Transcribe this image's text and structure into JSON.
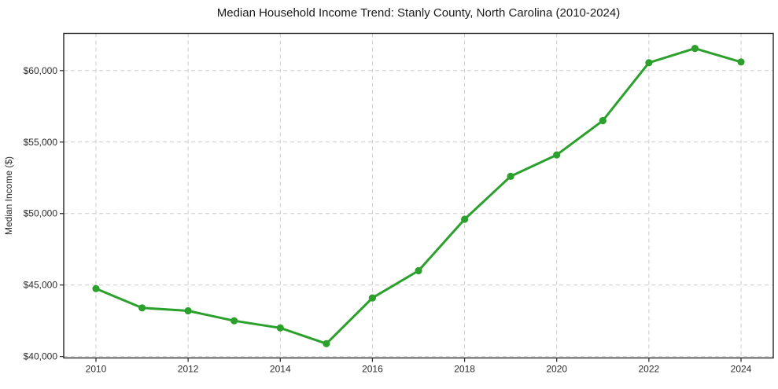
{
  "chart_data": {
    "type": "line",
    "title": "Median Household Income Trend: Stanly County, North Carolina (2010-2024)",
    "xlabel": "",
    "ylabel": "Median Income ($)",
    "x": [
      2010,
      2011,
      2012,
      2013,
      2014,
      2015,
      2016,
      2017,
      2018,
      2019,
      2020,
      2021,
      2022,
      2023,
      2024
    ],
    "values": [
      44750,
      43400,
      43200,
      42500,
      42000,
      40900,
      44100,
      46000,
      49600,
      52600,
      54100,
      56500,
      60550,
      61550,
      60600
    ],
    "x_ticks": [
      2010,
      2012,
      2014,
      2016,
      2018,
      2020,
      2022,
      2024
    ],
    "x_tick_labels": [
      "2010",
      "2012",
      "2014",
      "2016",
      "2018",
      "2020",
      "2022",
      "2024"
    ],
    "y_ticks": [
      40000,
      45000,
      50000,
      55000,
      60000
    ],
    "y_tick_labels": [
      "$40,000",
      "$45,000",
      "$50,000",
      "$55,000",
      "$60,000"
    ],
    "xlim": [
      2009.3,
      2024.7
    ],
    "ylim": [
      39900,
      62600
    ],
    "grid": true,
    "grid_style": "dashed",
    "legend": false,
    "marker": "circle",
    "colors": {
      "line": "#2ca02c",
      "marker": "#2ca02c",
      "grid": "#cccccc",
      "axis": "#262626",
      "text": "#2b2b2b",
      "background": "#ffffff"
    }
  }
}
